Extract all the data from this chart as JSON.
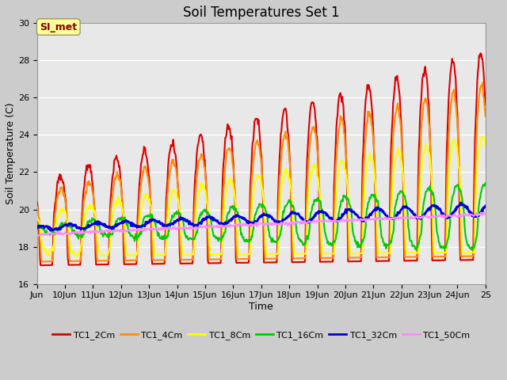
{
  "title": "Soil Temperatures Set 1",
  "xlabel": "Time",
  "ylabel": "Soil Temperature (C)",
  "ylim": [
    16,
    30
  ],
  "yticks": [
    16,
    18,
    20,
    22,
    24,
    26,
    28,
    30
  ],
  "xlim_days": [
    9,
    25
  ],
  "xtick_days": [
    9,
    10,
    11,
    12,
    13,
    14,
    15,
    16,
    17,
    18,
    19,
    20,
    21,
    22,
    23,
    24,
    25
  ],
  "xtick_labels": [
    "Jun",
    "10Jun",
    "11Jun",
    "12Jun",
    "13Jun",
    "14Jun",
    "15Jun",
    "16Jun",
    "17Jun",
    "18Jun",
    "19Jun",
    "20Jun",
    "21Jun",
    "22Jun",
    "23Jun",
    "24Jun",
    "25"
  ],
  "series_colors": {
    "TC1_2Cm": "#dd0000",
    "TC1_4Cm": "#ff8c00",
    "TC1_8Cm": "#ffff00",
    "TC1_16Cm": "#00cc00",
    "TC1_32Cm": "#0000dd",
    "TC1_50Cm": "#ff88ff"
  },
  "annotation_text": "SI_met",
  "annotation_color": "#880000",
  "annotation_bg": "#ffff99",
  "title_fontsize": 12,
  "axis_fontsize": 9,
  "tick_fontsize": 8
}
